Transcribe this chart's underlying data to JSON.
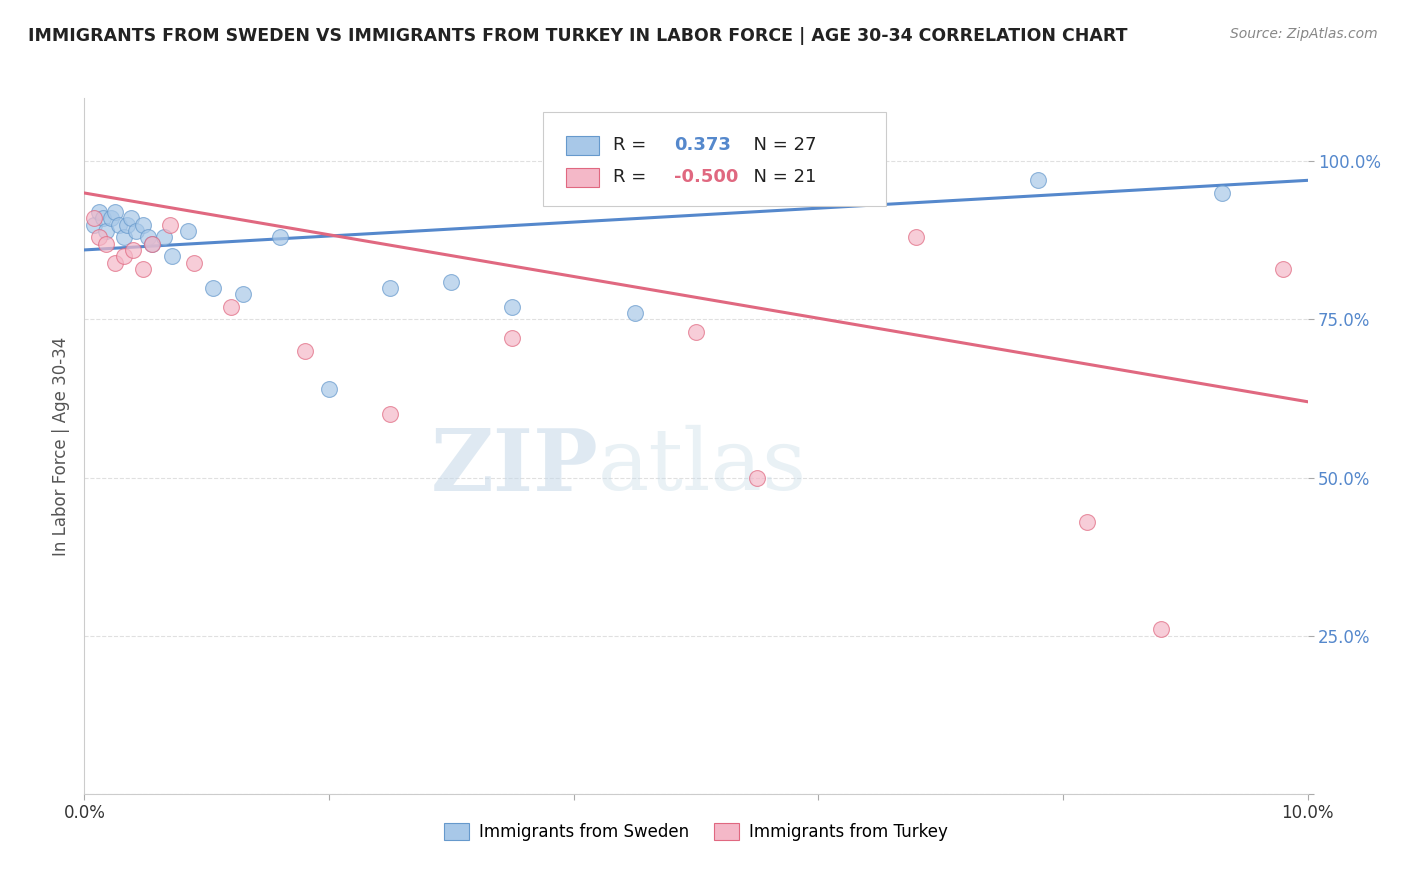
{
  "title": "IMMIGRANTS FROM SWEDEN VS IMMIGRANTS FROM TURKEY IN LABOR FORCE | AGE 30-34 CORRELATION CHART",
  "source": "Source: ZipAtlas.com",
  "ylabel": "In Labor Force | Age 30-34",
  "xlim": [
    0.0,
    10.0
  ],
  "ylim": [
    0.0,
    110.0
  ],
  "sweden_color": "#a8c8e8",
  "turkey_color": "#f4b8c8",
  "sweden_edge_color": "#6699cc",
  "turkey_edge_color": "#e06880",
  "sweden_line_color": "#5588cc",
  "turkey_line_color": "#e06880",
  "sweden_scatter_x": [
    0.08,
    0.12,
    0.15,
    0.18,
    0.22,
    0.25,
    0.28,
    0.32,
    0.35,
    0.38,
    0.42,
    0.48,
    0.52,
    0.55,
    0.65,
    0.72,
    0.85,
    1.05,
    1.3,
    1.6,
    2.0,
    2.5,
    3.0,
    3.5,
    4.5,
    7.8,
    9.3
  ],
  "sweden_scatter_y": [
    90,
    92,
    91,
    89,
    91,
    92,
    90,
    88,
    90,
    91,
    89,
    90,
    88,
    87,
    88,
    85,
    89,
    80,
    79,
    88,
    64,
    80,
    81,
    77,
    76,
    97,
    95
  ],
  "turkey_scatter_x": [
    0.08,
    0.12,
    0.18,
    0.25,
    0.32,
    0.4,
    0.48,
    0.55,
    0.7,
    0.9,
    1.2,
    1.8,
    2.5,
    3.5,
    5.0,
    5.5,
    6.8,
    8.2,
    8.8,
    9.8
  ],
  "turkey_scatter_y": [
    91,
    88,
    87,
    84,
    85,
    86,
    83,
    87,
    90,
    84,
    77,
    70,
    60,
    72,
    73,
    50,
    88,
    43,
    26,
    83
  ],
  "sweden_trend_x": [
    0.0,
    10.0
  ],
  "sweden_trend_y": [
    86.0,
    97.0
  ],
  "turkey_trend_x": [
    0.0,
    10.0
  ],
  "turkey_trend_y": [
    95.0,
    62.0
  ],
  "background_color": "#ffffff",
  "grid_color": "#dddddd",
  "watermark_zip": "ZIP",
  "watermark_atlas": "atlas"
}
